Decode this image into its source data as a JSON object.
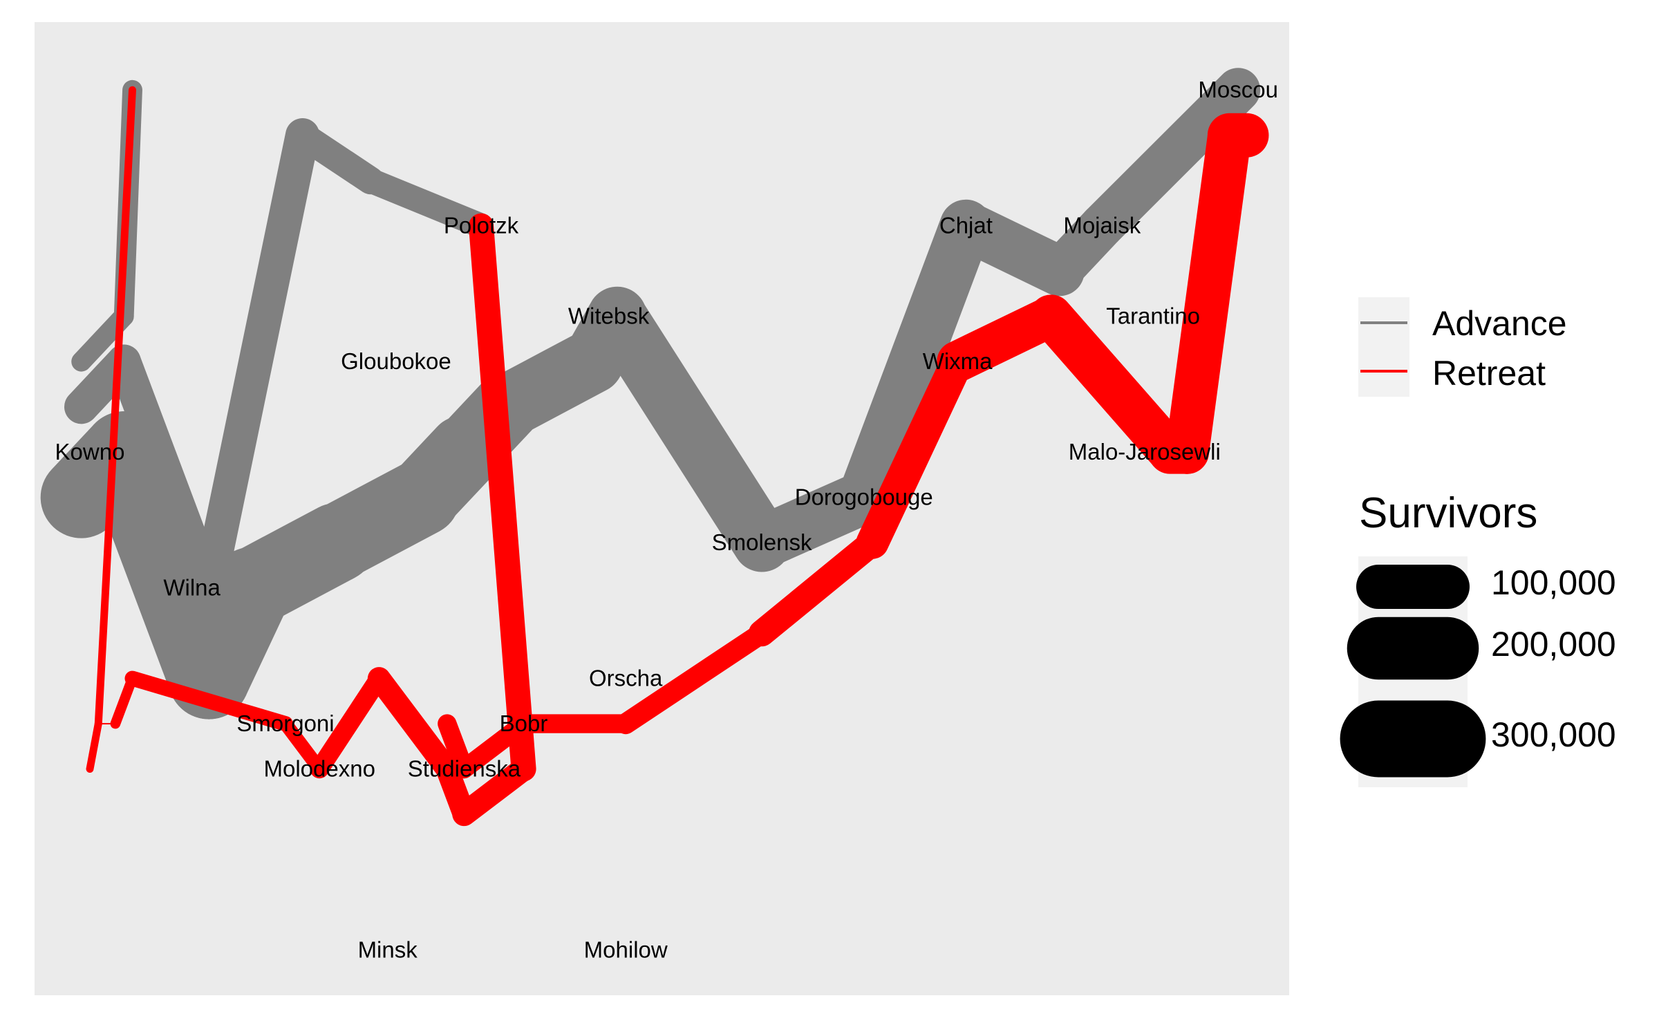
{
  "colors": {
    "panel_background": "#ebebeb",
    "advance": "#808080",
    "retreat": "#ff0000",
    "legend_key_background": "#f2f2f2",
    "size_key_fill": "#000000"
  },
  "chart_data": {
    "type": "line",
    "title": "",
    "xlabel": "",
    "ylabel": "",
    "xlim": [
      23.45,
      38.2
    ],
    "ylim": [
      53.8,
      55.95
    ],
    "grid": false,
    "axes_shown": false,
    "line_width_encodes": "survivors",
    "legend": {
      "position": "right",
      "color_entries": [
        "Advance",
        "Retreat"
      ],
      "size_title": "Survivors",
      "size_breaks": [
        100000,
        200000,
        300000
      ],
      "size_break_labels": [
        "100,000",
        "200,000",
        "300,000"
      ]
    },
    "cities": [
      {
        "name": "Kowno",
        "lon": 24.1,
        "lat": 55.0
      },
      {
        "name": "Wilna",
        "lon": 25.3,
        "lat": 54.7
      },
      {
        "name": "Smorgoni",
        "lon": 26.4,
        "lat": 54.4
      },
      {
        "name": "Molodexno",
        "lon": 26.8,
        "lat": 54.3
      },
      {
        "name": "Gloubokoe",
        "lon": 27.7,
        "lat": 55.2
      },
      {
        "name": "Minsk",
        "lon": 27.6,
        "lat": 53.9
      },
      {
        "name": "Studienska",
        "lon": 28.5,
        "lat": 54.3
      },
      {
        "name": "Polotzk",
        "lon": 28.7,
        "lat": 55.5
      },
      {
        "name": "Bobr",
        "lon": 29.2,
        "lat": 54.4
      },
      {
        "name": "Witebsk",
        "lon": 30.2,
        "lat": 55.3
      },
      {
        "name": "Orscha",
        "lon": 30.4,
        "lat": 54.5
      },
      {
        "name": "Mohilow",
        "lon": 30.4,
        "lat": 53.9
      },
      {
        "name": "Smolensk",
        "lon": 32.0,
        "lat": 54.8
      },
      {
        "name": "Dorogobouge",
        "lon": 33.2,
        "lat": 54.9
      },
      {
        "name": "Wixma",
        "lon": 34.3,
        "lat": 55.2
      },
      {
        "name": "Chjat",
        "lon": 34.4,
        "lat": 55.5
      },
      {
        "name": "Mojaisk",
        "lon": 36.0,
        "lat": 55.5
      },
      {
        "name": "Moscou",
        "lon": 37.6,
        "lat": 55.8
      },
      {
        "name": "Tarantino",
        "lon": 36.6,
        "lat": 55.3
      },
      {
        "name": "Malo-Jarosewli",
        "lon": 36.5,
        "lat": 55.0
      }
    ],
    "series": [
      {
        "name": "Advance",
        "group": 1,
        "points": [
          {
            "lon": 24.0,
            "lat": 54.9,
            "survivors": 340000
          },
          {
            "lon": 24.5,
            "lat": 55.0,
            "survivors": 340000
          },
          {
            "lon": 25.5,
            "lat": 54.5,
            "survivors": 340000
          },
          {
            "lon": 26.0,
            "lat": 54.7,
            "survivors": 320000
          },
          {
            "lon": 27.0,
            "lat": 54.8,
            "survivors": 300000
          },
          {
            "lon": 28.0,
            "lat": 54.9,
            "survivors": 280000
          },
          {
            "lon": 28.5,
            "lat": 55.0,
            "survivors": 240000
          },
          {
            "lon": 29.0,
            "lat": 55.1,
            "survivors": 210000
          },
          {
            "lon": 30.0,
            "lat": 55.2,
            "survivors": 180000
          },
          {
            "lon": 30.3,
            "lat": 55.3,
            "survivors": 175000
          },
          {
            "lon": 32.0,
            "lat": 54.8,
            "survivors": 145000
          },
          {
            "lon": 33.2,
            "lat": 54.9,
            "survivors": 140000
          },
          {
            "lon": 34.4,
            "lat": 55.5,
            "survivors": 127100
          },
          {
            "lon": 35.5,
            "lat": 55.4,
            "survivors": 100000
          },
          {
            "lon": 36.0,
            "lat": 55.5,
            "survivors": 100000
          },
          {
            "lon": 37.6,
            "lat": 55.8,
            "survivors": 100000
          }
        ]
      },
      {
        "name": "Retreat",
        "group": 1,
        "points": [
          {
            "lon": 37.7,
            "lat": 55.7,
            "survivors": 100000
          },
          {
            "lon": 37.5,
            "lat": 55.7,
            "survivors": 98000
          },
          {
            "lon": 37.0,
            "lat": 55.0,
            "survivors": 97000
          },
          {
            "lon": 36.8,
            "lat": 55.0,
            "survivors": 96000
          },
          {
            "lon": 35.4,
            "lat": 55.3,
            "survivors": 87000
          },
          {
            "lon": 34.3,
            "lat": 55.2,
            "survivors": 55000
          },
          {
            "lon": 33.3,
            "lat": 54.8,
            "survivors": 37000
          },
          {
            "lon": 32.0,
            "lat": 54.6,
            "survivors": 24000
          },
          {
            "lon": 30.4,
            "lat": 54.4,
            "survivors": 20000
          },
          {
            "lon": 29.2,
            "lat": 54.4,
            "survivors": 20000
          },
          {
            "lon": 28.5,
            "lat": 54.3,
            "survivors": 20000
          },
          {
            "lon": 28.3,
            "lat": 54.4,
            "survivors": 20000
          }
        ]
      },
      {
        "name": "Advance",
        "group": 2,
        "points": [
          {
            "lon": 24.0,
            "lat": 55.1,
            "survivors": 60000
          },
          {
            "lon": 24.5,
            "lat": 55.2,
            "survivors": 60000
          },
          {
            "lon": 25.5,
            "lat": 54.7,
            "survivors": 60000
          },
          {
            "lon": 26.6,
            "lat": 55.7,
            "survivors": 40000
          },
          {
            "lon": 27.4,
            "lat": 55.6,
            "survivors": 33000
          },
          {
            "lon": 28.7,
            "lat": 55.5,
            "survivors": 33000
          }
        ]
      },
      {
        "name": "Retreat",
        "group": 2,
        "points": [
          {
            "lon": 28.7,
            "lat": 55.5,
            "survivors": 33000
          },
          {
            "lon": 29.2,
            "lat": 54.3,
            "survivors": 30000
          },
          {
            "lon": 28.5,
            "lat": 54.2,
            "survivors": 28000
          },
          {
            "lon": 28.3,
            "lat": 54.3,
            "survivors": 28000
          },
          {
            "lon": 27.5,
            "lat": 54.5,
            "survivors": 20000
          },
          {
            "lon": 26.8,
            "lat": 54.3,
            "survivors": 12000
          },
          {
            "lon": 26.4,
            "lat": 54.4,
            "survivors": 14000
          },
          {
            "lon": 24.6,
            "lat": 54.5,
            "survivors": 8000
          },
          {
            "lon": 24.4,
            "lat": 54.4,
            "survivors": 4000
          },
          {
            "lon": 24.2,
            "lat": 54.4,
            "survivors": 4000
          },
          {
            "lon": 24.1,
            "lat": 54.3,
            "survivors": 4000
          }
        ]
      },
      {
        "name": "Advance",
        "group": 3,
        "points": [
          {
            "lon": 24.0,
            "lat": 55.2,
            "survivors": 22000
          },
          {
            "lon": 24.5,
            "lat": 55.3,
            "survivors": 22000
          },
          {
            "lon": 24.6,
            "lat": 55.8,
            "survivors": 6000
          }
        ]
      },
      {
        "name": "Retreat",
        "group": 3,
        "points": [
          {
            "lon": 24.6,
            "lat": 55.8,
            "survivors": 6000
          },
          {
            "lon": 24.2,
            "lat": 54.4,
            "survivors": 6000
          },
          {
            "lon": 24.1,
            "lat": 54.3,
            "survivors": 6000
          }
        ]
      }
    ]
  }
}
